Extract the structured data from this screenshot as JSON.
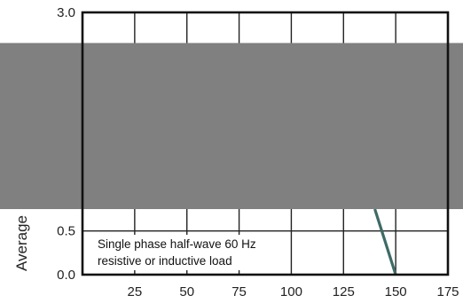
{
  "chart_data": {
    "type": "line",
    "title": "",
    "xlabel": "",
    "ylabel": "Average",
    "xlim": [
      0,
      175
    ],
    "ylim": [
      0,
      3.0
    ],
    "x_ticks": [
      "25",
      "50",
      "75",
      "100",
      "125",
      "150",
      "175"
    ],
    "y_ticks": [
      "0.0",
      "0.5",
      "3.0"
    ],
    "grid": true,
    "series": [
      {
        "name": "",
        "x": [
          140,
          150
        ],
        "y": [
          0.75,
          0.0
        ]
      }
    ],
    "annotation": [
      "Single phase half-wave 60 Hz",
      "resistive or inductive load"
    ],
    "colors": {
      "line": "#3d6b66",
      "occluded": "#808080"
    },
    "occlusion": {
      "note_shown": "",
      "x_range_data": [
        0,
        175
      ],
      "y_range_data": [
        0.75,
        2.65
      ]
    }
  }
}
